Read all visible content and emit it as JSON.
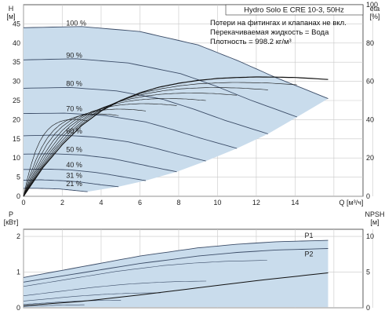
{
  "header": {
    "product": "Hydro Solo E CRE 10-3, 50Hz",
    "notes": [
      "Потери на фитингах и клапанах не вкл.",
      "Перекачиваемая жидкость = Вода",
      "Плотность = 998.2 кг/м³"
    ]
  },
  "colors": {
    "envelope_fill": "#c9dcec",
    "curve": "#3c4d68",
    "grid": "#c8c8c8",
    "efficiency_curve": "#111111",
    "axis": "#333333"
  },
  "chart_data": [
    {
      "id": "qh",
      "type": "line",
      "xlabel": "Q [м³/ч]",
      "ylabel_left": "H\n[м]",
      "ylabel_right": "eta\n[%]",
      "xlim": [
        0,
        17.5
      ],
      "ylim_left": [
        0,
        50
      ],
      "ylim_right": [
        0,
        100
      ],
      "xticks": [
        0,
        2,
        4,
        6,
        8,
        10,
        12,
        14
      ],
      "yticks_left": [
        0,
        5,
        10,
        15,
        20,
        25,
        30,
        35,
        40,
        45
      ],
      "yticks_right": [
        0,
        20,
        40,
        60,
        80,
        100
      ],
      "grid": true,
      "speed_curves": [
        {
          "name": "100 %",
          "x": [
            0,
            3,
            6,
            9,
            11,
            13,
            15.7
          ],
          "y": [
            44,
            44.3,
            43,
            39.5,
            35.5,
            31,
            25.5
          ]
        },
        {
          "name": "90 %",
          "x": [
            0,
            2.7,
            5.4,
            8.1,
            9.9,
            11.7,
            14.1
          ],
          "y": [
            35.6,
            35.9,
            34.8,
            32,
            28.8,
            25.1,
            20.7
          ]
        },
        {
          "name": "80 %",
          "x": [
            0,
            2.4,
            4.8,
            7.2,
            8.8,
            10.4,
            12.6
          ],
          "y": [
            28.2,
            28.4,
            27.5,
            25.3,
            22.7,
            19.8,
            16.3
          ]
        },
        {
          "name": "70 %",
          "x": [
            0,
            2.1,
            4.2,
            6.3,
            7.7,
            9.1,
            11
          ],
          "y": [
            21.6,
            21.7,
            21.1,
            19.4,
            17.4,
            15.2,
            12.5
          ]
        },
        {
          "name": "60 %",
          "x": [
            0,
            1.8,
            3.6,
            5.4,
            6.6,
            7.8,
            9.4
          ],
          "y": [
            15.8,
            16,
            15.5,
            14.2,
            12.8,
            11.2,
            9.2
          ]
        },
        {
          "name": "50 %",
          "x": [
            0,
            1.5,
            3,
            4.5,
            5.5,
            6.5,
            7.9
          ],
          "y": [
            11,
            11.1,
            10.8,
            9.9,
            8.9,
            7.8,
            6.4
          ]
        },
        {
          "name": "40 %",
          "x": [
            0,
            1.2,
            2.4,
            3.6,
            4.4,
            5.2,
            6.3
          ],
          "y": [
            7,
            7.1,
            6.9,
            6.3,
            5.7,
            5,
            4.1
          ]
        },
        {
          "name": "31 %",
          "x": [
            0,
            0.9,
            1.9,
            2.8,
            3.4,
            4,
            4.9
          ],
          "y": [
            4.2,
            4.3,
            4.1,
            3.8,
            3.4,
            3,
            2.5
          ]
        },
        {
          "name": "21 %",
          "x": [
            0,
            0.6,
            1.3,
            1.9,
            2.3,
            2.7,
            3.3
          ],
          "y": [
            2.1,
            2.1,
            2,
            1.9,
            1.7,
            1.5,
            1.2
          ]
        }
      ],
      "efficiency_curve": {
        "x": [
          0,
          1,
          2,
          3,
          4,
          5,
          6,
          7,
          8,
          9,
          10,
          11,
          12,
          13,
          14,
          15.7
        ],
        "y": [
          0,
          15,
          27,
          37,
          44.5,
          50,
          54,
          57,
          59,
          60.5,
          61.5,
          62,
          62.3,
          62.2,
          62,
          61
        ]
      }
    },
    {
      "id": "power",
      "type": "line",
      "ylabel_left": "P\n[кВт]",
      "ylabel_right": "NPSH\n[м]",
      "xlim": [
        0,
        17.5
      ],
      "ylim_left": [
        0,
        2.2
      ],
      "ylim_right": [
        0,
        11
      ],
      "yticks_left": [
        0,
        1,
        2
      ],
      "yticks_right": [
        0,
        5,
        10
      ],
      "grid": true,
      "series_labels": [
        "P1",
        "P2"
      ],
      "power_curves": [
        {
          "name": "P1",
          "x": [
            0,
            3,
            6,
            9,
            11,
            13,
            15.7
          ],
          "y": [
            0.85,
            1.15,
            1.45,
            1.68,
            1.78,
            1.85,
            1.89
          ]
        },
        {
          "name": "P2",
          "x": [
            0,
            3,
            6,
            9,
            11,
            13,
            15.7
          ],
          "y": [
            0.72,
            0.98,
            1.24,
            1.45,
            1.55,
            1.62,
            1.66
          ]
        }
      ],
      "npsh_curve": {
        "x": [
          0,
          3,
          6,
          9,
          12,
          15.7
        ],
        "y": [
          0.3,
          0.9,
          1.8,
          2.8,
          3.8,
          4.9
        ]
      }
    }
  ]
}
